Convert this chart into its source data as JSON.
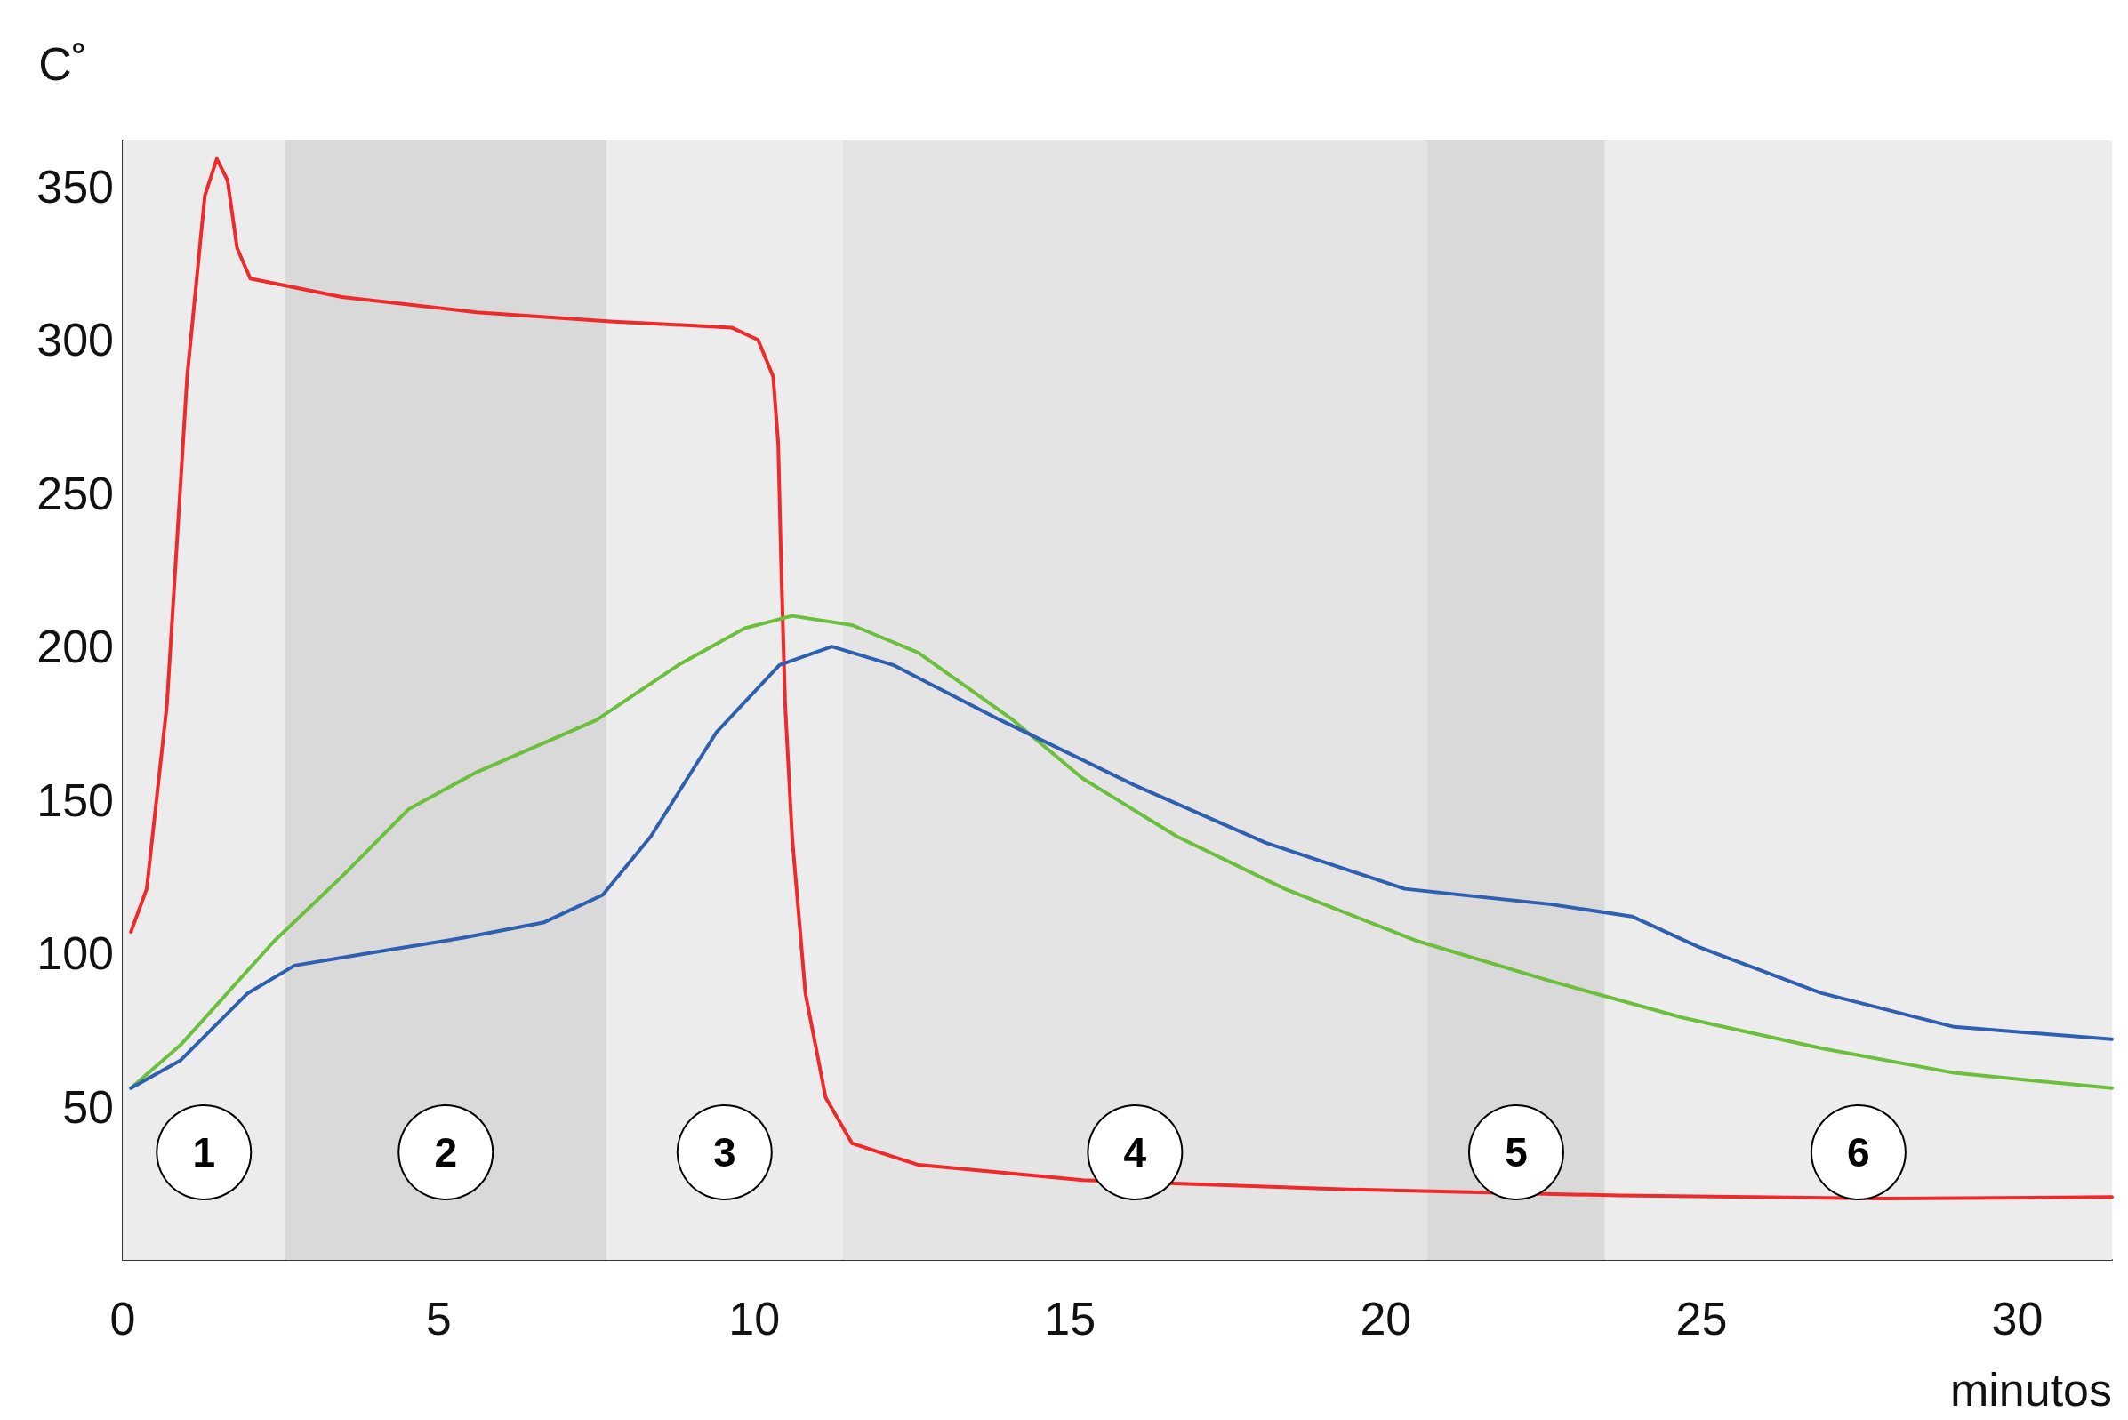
{
  "chart_data": {
    "type": "line",
    "xlabel": "minutos",
    "ylabel": "C˚",
    "xlim": [
      0,
      31.5
    ],
    "ylim": [
      0,
      365
    ],
    "xticks": [
      0,
      5,
      10,
      15,
      20,
      25,
      30
    ],
    "yticks": [
      50,
      100,
      150,
      200,
      250,
      300,
      350
    ],
    "grid": false,
    "marker": "none",
    "line_style": "solid",
    "bands": [
      {
        "axis": "x",
        "from": 0,
        "to": 2.57,
        "label": "1",
        "color": "#ececec"
      },
      {
        "axis": "x",
        "from": 2.57,
        "to": 7.66,
        "label": "2",
        "color": "#d9d9d9"
      },
      {
        "axis": "x",
        "from": 7.66,
        "to": 11.4,
        "label": "3",
        "color": "#ececec"
      },
      {
        "axis": "x",
        "from": 11.4,
        "to": 20.66,
        "label": "4",
        "color": "#e4e4e4"
      },
      {
        "axis": "x",
        "from": 20.66,
        "to": 23.47,
        "label": "5",
        "color": "#d9d9d9"
      },
      {
        "axis": "x",
        "from": 23.47,
        "to": 31.5,
        "label": "6",
        "color": "#ececec"
      }
    ],
    "series": [
      {
        "color": "#ee2a2a",
        "x": [
          0.13,
          0.38,
          0.7,
          1.02,
          1.3,
          1.49,
          1.66,
          1.81,
          2.02,
          3.47,
          5.6,
          7.72,
          9.64,
          10.06,
          10.3,
          10.38,
          10.43,
          10.49,
          10.6,
          10.81,
          11.13,
          11.55,
          12.6,
          15.2,
          19.4,
          23.7,
          27.9,
          31.5
        ],
        "values": [
          107,
          121,
          181,
          288,
          347,
          359,
          352,
          330,
          320,
          314,
          309,
          306,
          304,
          300,
          288,
          266,
          224,
          181,
          138,
          87,
          53,
          38,
          31,
          26,
          23,
          21,
          20,
          20.5
        ]
      },
      {
        "color": "#6cbf3c",
        "x": [
          0.13,
          0.91,
          2.4,
          3.47,
          4.53,
          5.6,
          7.5,
          8.8,
          9.85,
          10.6,
          11.55,
          12.6,
          14.1,
          15.2,
          16.7,
          18.4,
          20.5,
          22.6,
          24.7,
          26.9,
          29,
          31.5
        ],
        "values": [
          56,
          70,
          104,
          125,
          147,
          159,
          176,
          194,
          206,
          210,
          207,
          198,
          176,
          157,
          138,
          121,
          104,
          91,
          79,
          69,
          61,
          56
        ]
      },
      {
        "color": "#2f5fb0",
        "x": [
          0.13,
          0.91,
          1.98,
          2.72,
          3.89,
          5.38,
          6.66,
          7.6,
          8.36,
          9.4,
          10.4,
          11.23,
          12.2,
          13.9,
          16,
          18.1,
          20.3,
          22.6,
          23.9,
          24.96,
          26.9,
          29,
          31.5
        ],
        "values": [
          56,
          65,
          87,
          96,
          100,
          105,
          110,
          119,
          138,
          172,
          194,
          200,
          194,
          176,
          155,
          136,
          121,
          116,
          112,
          102,
          87,
          76,
          72
        ]
      }
    ]
  }
}
